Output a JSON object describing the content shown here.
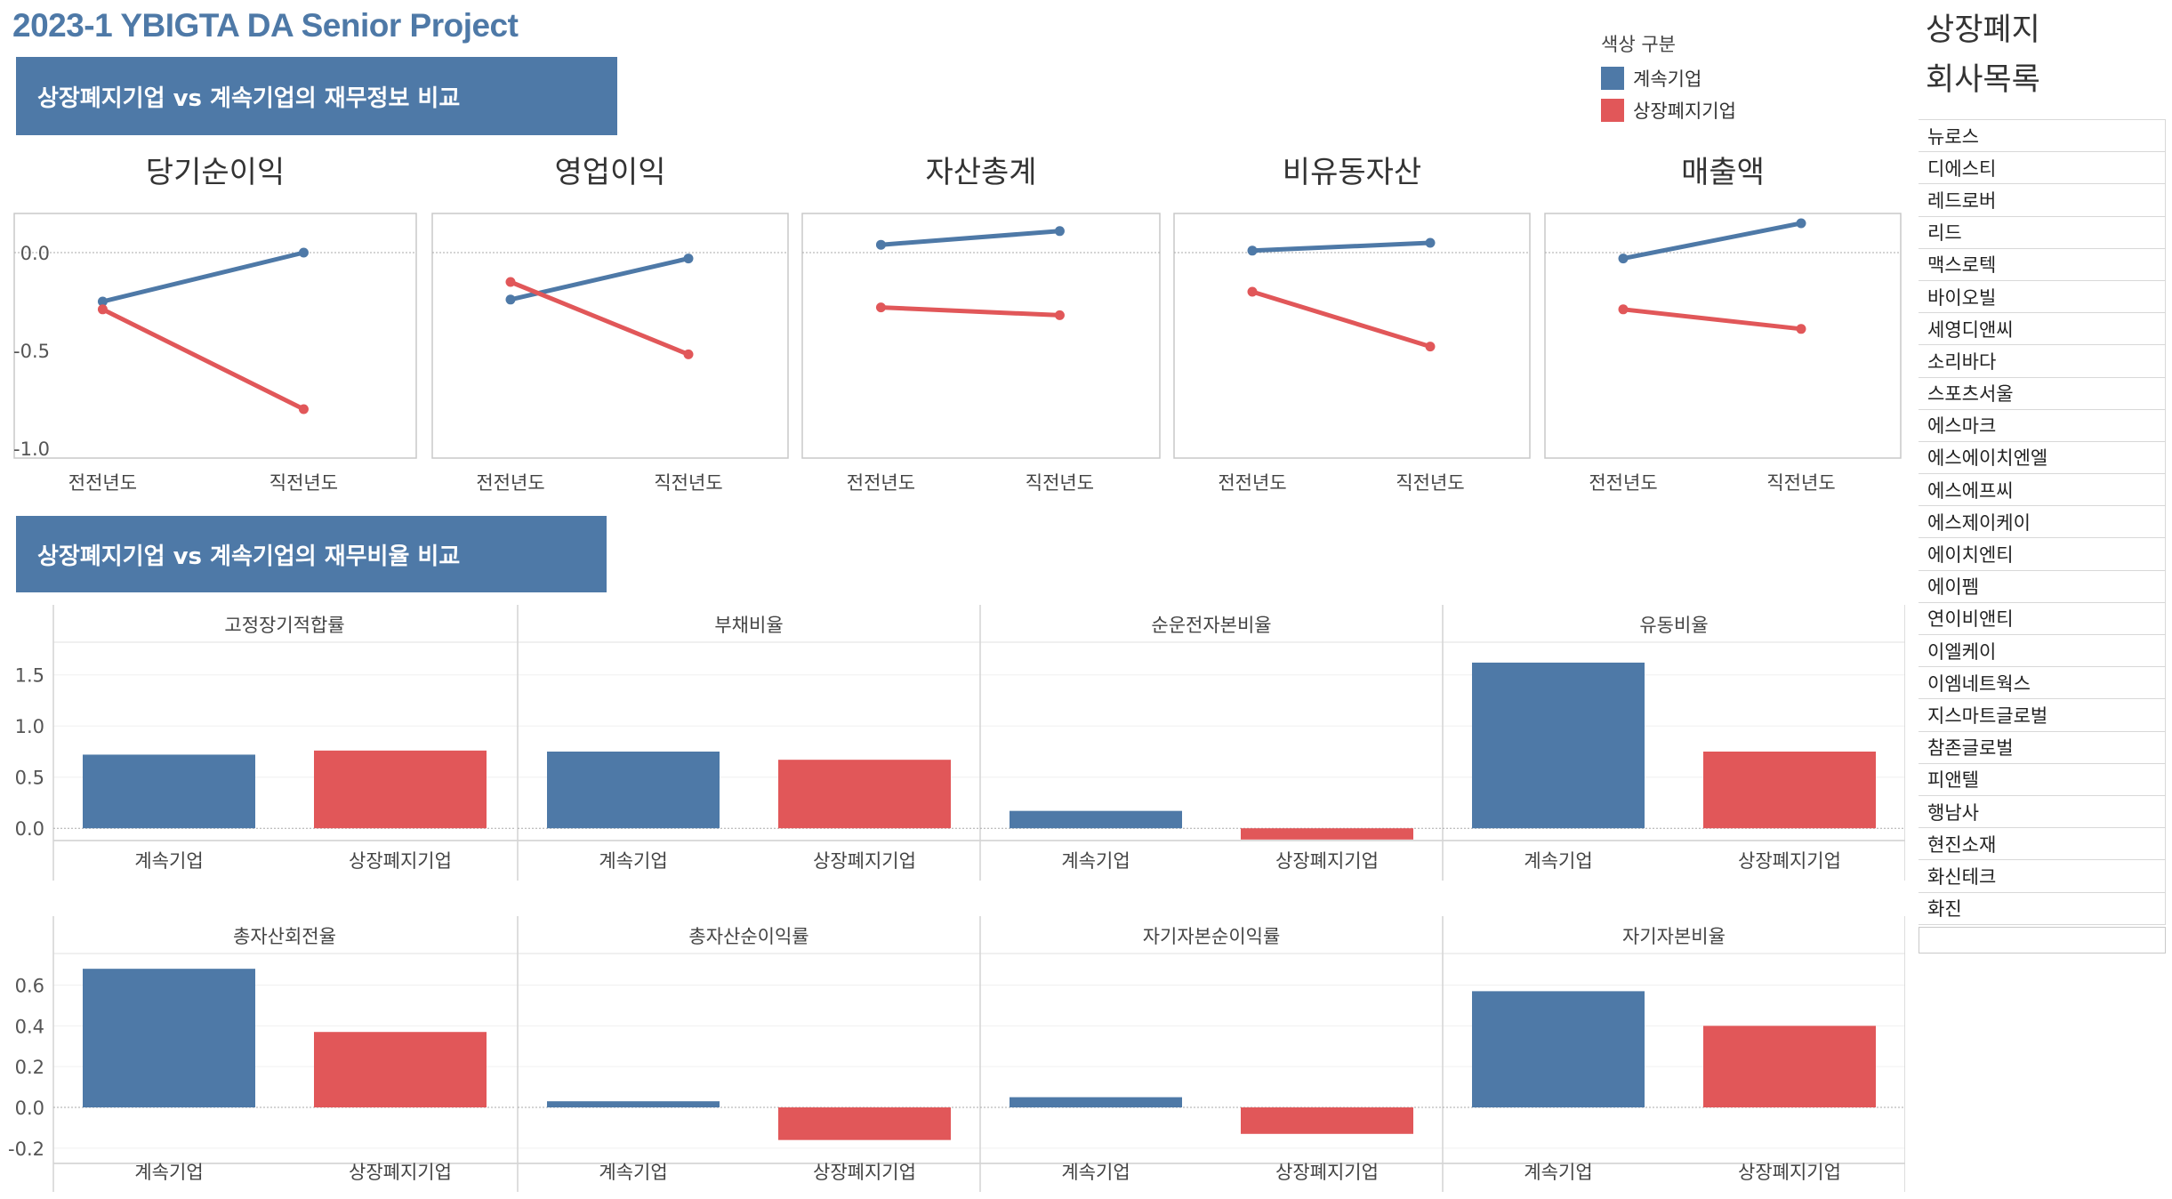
{
  "header": {
    "title": "2023-1 YBIGTA DA Senior Project",
    "banner_info": "상장폐지기업 vs 계속기업의 재무정보 비교",
    "banner_ratio": "상장폐지기업 vs 계속기업의 재무비율 비교"
  },
  "legend": {
    "title": "색상 구분",
    "items": [
      {
        "label": "계속기업",
        "color": "#4e79a7"
      },
      {
        "label": "상장폐지기업",
        "color": "#e15759"
      }
    ]
  },
  "sidebar": {
    "title_line1": "상장폐지",
    "title_line2": "회사목록",
    "companies": [
      "뉴로스",
      "디에스티",
      "레드로버",
      "리드",
      "맥스로텍",
      "바이오빌",
      "세영디앤씨",
      "소리바다",
      "스포츠서울",
      "에스마크",
      "에스에이치엔엘",
      "에스에프씨",
      "에스제이케이",
      "에이치엔티",
      "에이펨",
      "연이비앤티",
      "이엘케이",
      "이엠네트웍스",
      "지스마트글로벌",
      "참존글로벌",
      "피앤텔",
      "행남사",
      "현진소재",
      "화신테크",
      "화진"
    ]
  },
  "chart_data": [
    {
      "type": "line",
      "title": "당기순이익",
      "categories": [
        "전전년도",
        "직전년도"
      ],
      "ylim": [
        -1.05,
        0.2
      ],
      "yticks": [
        "0.0",
        "-0.5",
        "-1.0"
      ],
      "series": [
        {
          "name": "계속기업",
          "values": [
            -0.25,
            0.0
          ]
        },
        {
          "name": "상장폐지기업",
          "values": [
            -0.29,
            -0.8
          ]
        }
      ]
    },
    {
      "type": "line",
      "title": "영업이익",
      "categories": [
        "전전년도",
        "직전년도"
      ],
      "ylim": [
        -1.05,
        0.2
      ],
      "series": [
        {
          "name": "계속기업",
          "values": [
            -0.24,
            -0.03
          ]
        },
        {
          "name": "상장폐지기업",
          "values": [
            -0.15,
            -0.52
          ]
        }
      ]
    },
    {
      "type": "line",
      "title": "자산총계",
      "categories": [
        "전전년도",
        "직전년도"
      ],
      "ylim": [
        -1.05,
        0.2
      ],
      "series": [
        {
          "name": "계속기업",
          "values": [
            0.04,
            0.11
          ]
        },
        {
          "name": "상장폐지기업",
          "values": [
            -0.28,
            -0.32
          ]
        }
      ]
    },
    {
      "type": "line",
      "title": "비유동자산",
      "categories": [
        "전전년도",
        "직전년도"
      ],
      "ylim": [
        -1.05,
        0.2
      ],
      "series": [
        {
          "name": "계속기업",
          "values": [
            0.01,
            0.05
          ]
        },
        {
          "name": "상장폐지기업",
          "values": [
            -0.2,
            -0.48
          ]
        }
      ]
    },
    {
      "type": "line",
      "title": "매출액",
      "categories": [
        "전전년도",
        "직전년도"
      ],
      "ylim": [
        -1.05,
        0.2
      ],
      "series": [
        {
          "name": "계속기업",
          "values": [
            -0.03,
            0.15
          ]
        },
        {
          "name": "상장폐지기업",
          "values": [
            -0.29,
            -0.39
          ]
        }
      ]
    },
    {
      "type": "bar",
      "row": "top",
      "ylim": [
        -0.12,
        1.75
      ],
      "yticks": [
        {
          "v": 0.0,
          "t": "0.0"
        },
        {
          "v": 0.5,
          "t": "0.5"
        },
        {
          "v": 1.0,
          "t": "1.0"
        },
        {
          "v": 1.5,
          "t": "1.5"
        }
      ],
      "categories": [
        "계속기업",
        "상장폐지기업"
      ],
      "panels": [
        {
          "title": "고정장기적합률",
          "values": [
            0.72,
            0.76
          ]
        },
        {
          "title": "부채비율",
          "values": [
            0.75,
            0.67
          ]
        },
        {
          "title": "순운전자본비율",
          "values": [
            0.17,
            -0.11
          ]
        },
        {
          "title": "유동비율",
          "values": [
            1.62,
            0.75
          ]
        }
      ]
    },
    {
      "type": "bar",
      "row": "bottom",
      "ylim": [
        -0.24,
        0.72
      ],
      "yticks": [
        {
          "v": -0.2,
          "t": "-0.2"
        },
        {
          "v": 0.0,
          "t": "0.0"
        },
        {
          "v": 0.2,
          "t": "0.2"
        },
        {
          "v": 0.4,
          "t": "0.4"
        },
        {
          "v": 0.6,
          "t": "0.6"
        }
      ],
      "categories": [
        "계속기업",
        "상장폐지기업"
      ],
      "panels": [
        {
          "title": "총자산회전율",
          "values": [
            0.68,
            0.37
          ]
        },
        {
          "title": "총자산순이익률",
          "values": [
            0.03,
            -0.16
          ]
        },
        {
          "title": "자기자본순이익률",
          "values": [
            0.05,
            -0.13
          ]
        },
        {
          "title": "자기자본비율",
          "values": [
            0.57,
            0.4
          ]
        }
      ]
    }
  ]
}
